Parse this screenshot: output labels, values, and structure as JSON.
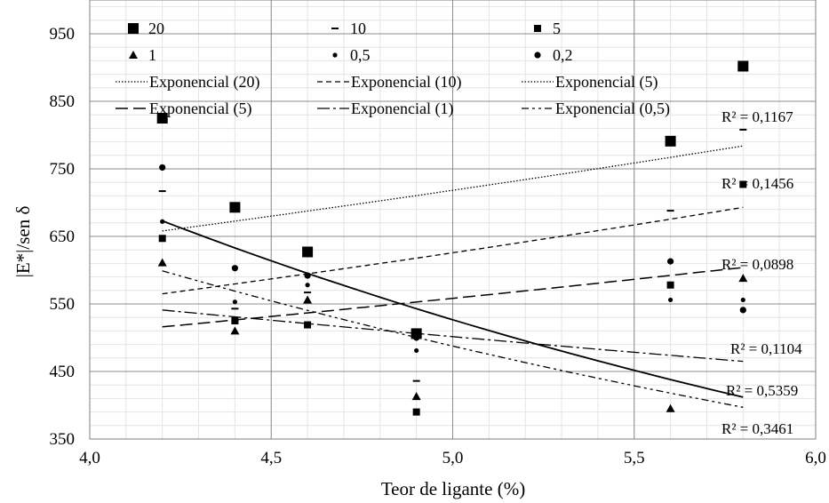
{
  "chart_data": {
    "type": "scatter",
    "title": "",
    "xlabel": "Teor de ligante (%)",
    "ylabel": "|E*|/sen δ",
    "xlim": [
      4.0,
      6.0
    ],
    "ylim": [
      350,
      1000
    ],
    "x_ticks": [
      4.0,
      4.5,
      5.0,
      5.5,
      6.0
    ],
    "x_tick_labels": [
      "4,0",
      "4,5",
      "5,0",
      "5,5",
      "6,0"
    ],
    "y_ticks": [
      350,
      450,
      550,
      650,
      750,
      850,
      950
    ],
    "y_tick_labels": [
      "350",
      "450",
      "550",
      "650",
      "750",
      "850",
      "950"
    ],
    "grid": true,
    "legend_position": "top",
    "series": [
      {
        "name": "20",
        "marker": "square-large",
        "x": [
          4.2,
          4.4,
          4.6,
          4.9,
          5.6,
          5.8
        ],
        "y": [
          825,
          693,
          627,
          506,
          791,
          902
        ]
      },
      {
        "name": "10",
        "marker": "dash",
        "x": [
          4.2,
          4.4,
          4.6,
          4.9,
          5.6,
          5.8
        ],
        "y": [
          717,
          543,
          567,
          436,
          688,
          808
        ]
      },
      {
        "name": "5",
        "marker": "square-small",
        "x": [
          4.2,
          4.4,
          4.6,
          4.9,
          5.6,
          5.8
        ],
        "y": [
          647,
          525,
          519,
          390,
          578,
          727
        ]
      },
      {
        "name": "1",
        "marker": "triangle",
        "x": [
          4.2,
          4.4,
          4.6,
          4.9,
          5.6,
          5.8
        ],
        "y": [
          611,
          510,
          556,
          413,
          395,
          588
        ]
      },
      {
        "name": "0,5",
        "marker": "dot-small",
        "x": [
          4.2,
          4.4,
          4.6,
          4.9,
          5.6,
          5.8
        ],
        "y": [
          672,
          553,
          578,
          481,
          556,
          556
        ]
      },
      {
        "name": "0,2",
        "marker": "dot-large",
        "x": [
          4.2,
          4.4,
          4.6,
          4.9,
          5.6,
          5.8
        ],
        "y": [
          752,
          603,
          592,
          500,
          613,
          541
        ]
      }
    ],
    "trendlines": [
      {
        "name": "Exponencial (20)",
        "style": "dotted",
        "x": [
          4.2,
          5.8
        ],
        "y": [
          658,
          784
        ],
        "r2_label": "R² = 0,1167"
      },
      {
        "name": "Exponencial (10)",
        "style": "dashed",
        "x": [
          4.2,
          5.8
        ],
        "y": [
          565,
          693
        ],
        "r2_label": "R² = 0,1456"
      },
      {
        "name": "Exponencial (5)",
        "style": "longdash",
        "x": [
          4.2,
          5.8
        ],
        "y": [
          516,
          604
        ],
        "r2_label": "R² = 0,0898"
      },
      {
        "name": "Exponencial (1)",
        "style": "dashdot",
        "x": [
          4.2,
          5.8
        ],
        "y": [
          541,
          465
        ],
        "r2_label": "R² = 0,1104"
      },
      {
        "name": "Exponencial (0,5)",
        "style": "dashdotdot",
        "x": [
          4.2,
          5.8
        ],
        "y": [
          599,
          397
        ],
        "r2_label": "R² = 0,3461"
      },
      {
        "name": "",
        "style": "solid",
        "x": [
          4.2,
          5.8
        ],
        "y": [
          673,
          412
        ],
        "r2_label": "R² = 0,5359"
      }
    ],
    "legend_entries": [
      "20",
      "10",
      "5",
      "1",
      "0,5",
      "0,2",
      "Exponencial (20)",
      "Exponencial (10)",
      "Exponencial (5)",
      "Exponencial (5)",
      "Exponencial (1)",
      "Exponencial (0,5)"
    ]
  }
}
